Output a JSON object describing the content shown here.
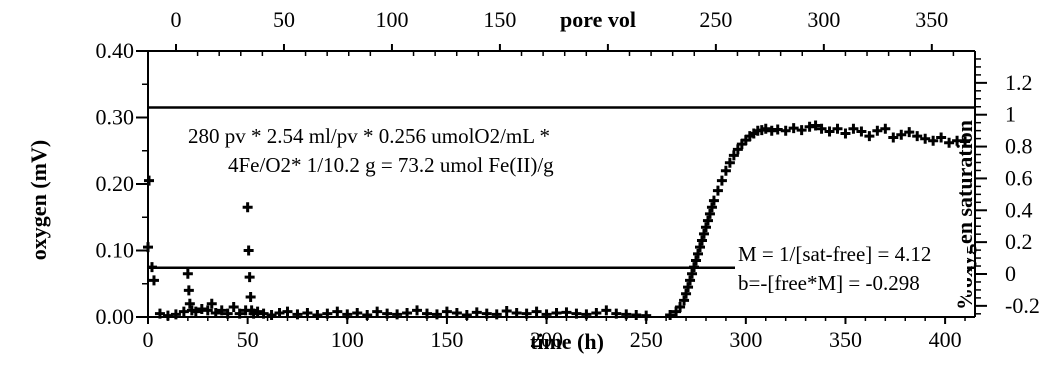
{
  "chart_data": {
    "type": "scatter",
    "title": "",
    "xlabel": "time (h)",
    "x2label": "pore vol",
    "ylabel": "oxygen (mV)",
    "y2label": "%oxygen saturation",
    "xlim": [
      0,
      415
    ],
    "ylim": [
      0,
      0.4
    ],
    "x2lim": [
      0,
      370
    ],
    "y2lim": [
      -0.27,
      1.4
    ],
    "x_ticks": [
      0,
      50,
      100,
      150,
      200,
      250,
      300,
      350,
      400
    ],
    "y_ticks": [
      0.0,
      0.1,
      0.2,
      0.3,
      0.4
    ],
    "y_tick_labels": [
      "0.00",
      "0.10",
      "0.20",
      "0.30",
      "0.40"
    ],
    "x2_ticks": [
      0,
      50,
      100,
      150,
      200,
      250,
      300,
      350
    ],
    "y2_ticks": [
      -0.2,
      0,
      0.2,
      0.4,
      0.6,
      0.8,
      1,
      1.2
    ],
    "y2_tick_labels": [
      "-0.2",
      "0",
      "0.2",
      "0.4",
      "0.6",
      "0.8",
      "1",
      "1.2"
    ],
    "reference_lines_y": [
      0.074,
      0.315
    ],
    "annotations": [
      "280 pv * 2.54 ml/pv * 0.256 umolO2/mL *",
      "4Fe/O2* 1/10.2 g = 73.2 umol Fe(II)/g",
      "M = 1/[sat-free] = 4.12",
      "b=-[free*M] = -0.298"
    ],
    "series": [
      {
        "marker": "plus",
        "x": [
          0,
          0.5,
          2,
          3,
          6,
          10,
          14,
          18,
          20,
          20.5,
          21,
          22,
          24,
          27,
          30,
          32,
          34,
          37,
          40,
          43,
          46,
          49,
          50,
          50.5,
          51,
          51.5,
          52,
          53,
          55,
          58,
          62,
          66,
          70,
          75,
          80,
          85,
          90,
          95,
          100,
          105,
          110,
          115,
          120,
          125,
          130,
          135,
          140,
          145,
          150,
          155,
          160,
          165,
          170,
          175,
          180,
          185,
          190,
          195,
          200,
          205,
          210,
          215,
          220,
          225,
          230,
          235,
          240,
          245,
          250,
          262,
          265,
          267,
          269,
          270,
          271,
          272,
          273,
          274,
          275,
          276,
          277,
          278,
          279,
          280,
          281,
          282,
          283,
          284,
          286,
          288,
          290,
          292,
          294,
          296,
          298,
          300,
          302,
          304,
          306,
          308,
          310,
          313,
          316,
          320,
          324,
          328,
          332,
          335,
          338,
          342,
          346,
          350,
          354,
          358,
          362,
          366,
          370,
          374,
          378,
          382,
          386,
          390,
          394,
          398,
          402,
          406,
          410
        ],
        "y": [
          0.105,
          0.205,
          0.075,
          0.055,
          0.005,
          0.002,
          0.004,
          0.008,
          0.065,
          0.04,
          0.02,
          0.01,
          0.008,
          0.012,
          0.01,
          0.02,
          0.006,
          0.01,
          0.005,
          0.015,
          0.005,
          0.01,
          0.165,
          0.1,
          0.06,
          0.03,
          0.01,
          0.005,
          0.008,
          0.005,
          0.003,
          0.006,
          0.008,
          0.004,
          0.006,
          0.003,
          0.005,
          0.008,
          0.004,
          0.006,
          0.003,
          0.008,
          0.005,
          0.004,
          0.006,
          0.01,
          0.005,
          0.004,
          0.008,
          0.006,
          0.003,
          0.007,
          0.005,
          0.004,
          0.009,
          0.006,
          0.005,
          0.008,
          0.004,
          0.006,
          0.007,
          0.005,
          0.004,
          0.006,
          0.01,
          0.005,
          0.004,
          0.003,
          0.002,
          0.003,
          0.008,
          0.015,
          0.025,
          0.035,
          0.045,
          0.055,
          0.065,
          0.075,
          0.085,
          0.095,
          0.105,
          0.115,
          0.125,
          0.135,
          0.145,
          0.155,
          0.165,
          0.175,
          0.19,
          0.205,
          0.22,
          0.232,
          0.243,
          0.252,
          0.26,
          0.266,
          0.272,
          0.276,
          0.28,
          0.281,
          0.283,
          0.28,
          0.282,
          0.28,
          0.284,
          0.281,
          0.286,
          0.288,
          0.283,
          0.279,
          0.283,
          0.276,
          0.283,
          0.279,
          0.272,
          0.28,
          0.283,
          0.27,
          0.274,
          0.278,
          0.272,
          0.268,
          0.265,
          0.27,
          0.262,
          0.265,
          0.264
        ]
      }
    ]
  }
}
